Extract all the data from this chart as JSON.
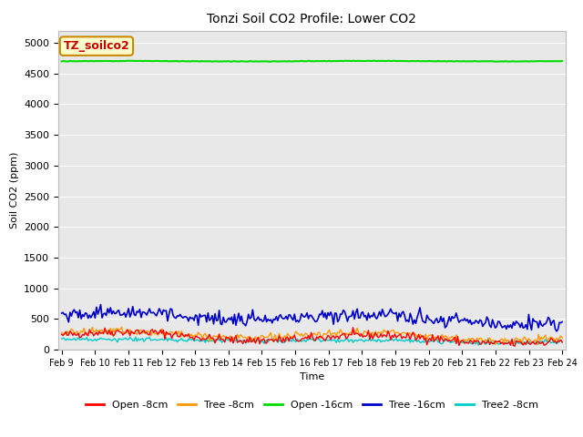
{
  "title": "Tonzi Soil CO2 Profile: Lower CO2",
  "ylabel": "Soil CO2 (ppm)",
  "xlabel": "Time",
  "annotation_text": "TZ_soilco2",
  "annotation_bg": "#ffffcc",
  "annotation_border": "#cc8800",
  "ylim": [
    0,
    5200
  ],
  "yticks": [
    0,
    500,
    1000,
    1500,
    2000,
    2500,
    3000,
    3500,
    4000,
    4500,
    5000
  ],
  "date_start": 9,
  "date_end": 24,
  "n_points": 360,
  "bg_color": "#e8e8e8",
  "fig_bg": "#ffffff",
  "series": {
    "open_8cm": {
      "color": "#ff0000",
      "label": "Open -8cm",
      "base": 230,
      "amp": 60,
      "noise": 35,
      "trend": -70
    },
    "tree_8cm": {
      "color": "#ff9900",
      "label": "Tree -8cm",
      "base": 270,
      "amp": 50,
      "noise": 30,
      "trend": -90
    },
    "open_16cm": {
      "color": "#00dd00",
      "label": "Open -16cm",
      "base": 4700,
      "amp": 4,
      "noise": 2,
      "trend": 0
    },
    "tree_16cm": {
      "color": "#0000cc",
      "label": "Tree -16cm",
      "base": 590,
      "amp": 45,
      "noise": 55,
      "trend": -70
    },
    "tree2_8cm": {
      "color": "#00cccc",
      "label": "Tree2 -8cm",
      "base": 165,
      "amp": 15,
      "noise": 18,
      "trend": -30
    }
  },
  "title_fontsize": 10,
  "axis_label_fontsize": 8,
  "tick_fontsize": 8,
  "legend_fontsize": 8
}
